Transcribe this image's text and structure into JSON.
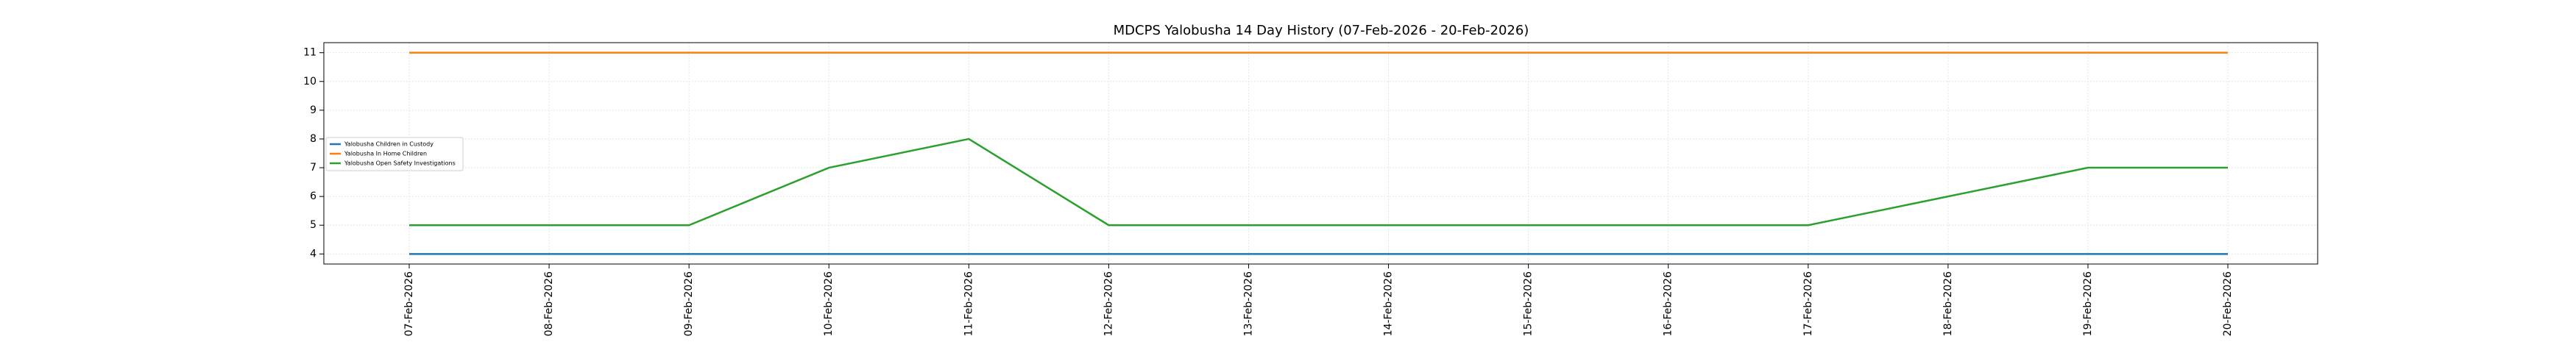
{
  "chart_data": {
    "type": "line",
    "title": "MDCPS Yalobusha 14 Day History (07-Feb-2026 - 20-Feb-2026)",
    "categories": [
      "07-Feb-2026",
      "08-Feb-2026",
      "09-Feb-2026",
      "10-Feb-2026",
      "11-Feb-2026",
      "12-Feb-2026",
      "13-Feb-2026",
      "14-Feb-2026",
      "15-Feb-2026",
      "16-Feb-2026",
      "17-Feb-2026",
      "18-Feb-2026",
      "19-Feb-2026",
      "20-Feb-2026"
    ],
    "series": [
      {
        "name": "Yalobusha Children in Custody",
        "color": "#1f77b4",
        "values": [
          4,
          4,
          4,
          4,
          4,
          4,
          4,
          4,
          4,
          4,
          4,
          4,
          4,
          4
        ]
      },
      {
        "name": "Yalobusha In Home Children",
        "color": "#ff7f0e",
        "values": [
          11,
          11,
          11,
          11,
          11,
          11,
          11,
          11,
          11,
          11,
          11,
          11,
          11,
          11
        ]
      },
      {
        "name": "Yalobusha Open Safety Investigations",
        "color": "#2ca02c",
        "values": [
          5,
          5,
          5,
          7,
          8,
          5,
          5,
          5,
          5,
          5,
          5,
          6,
          7,
          7
        ]
      }
    ],
    "ylim": [
      3.65,
      11.35
    ],
    "yticks": [
      4,
      5,
      6,
      7,
      8,
      9,
      10,
      11
    ],
    "grid": true,
    "legend": "left"
  }
}
